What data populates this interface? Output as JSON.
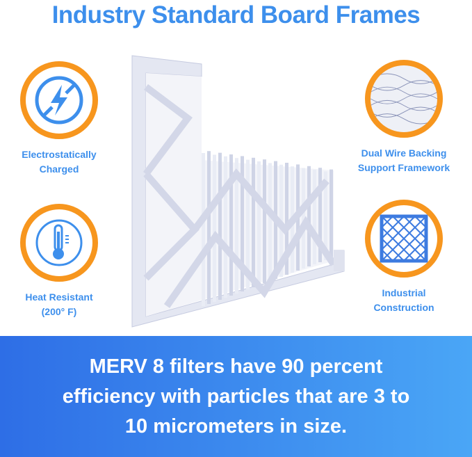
{
  "title": "Industry Standard Board Frames",
  "features": [
    {
      "label": "Electrostatically Charged",
      "icon": "no-static-bolt-icon"
    },
    {
      "label": "Heat Resistant (200° F)",
      "icon": "thermometer-icon"
    },
    {
      "label": "Dual Wire Backing Support Framework",
      "icon": "wire-mesh-photo"
    },
    {
      "label": "Industrial Construction",
      "icon": "grid-frame-icon"
    }
  ],
  "banner": {
    "text": "MERV 8 filters have 90 percent efficiency with particles that are 3 to 10 micrometers in size."
  },
  "colors": {
    "accent_blue": "#3d8fec",
    "ring_orange": "#f7961e",
    "banner_start": "#2e6ee6",
    "banner_end": "#4aa6f6"
  }
}
